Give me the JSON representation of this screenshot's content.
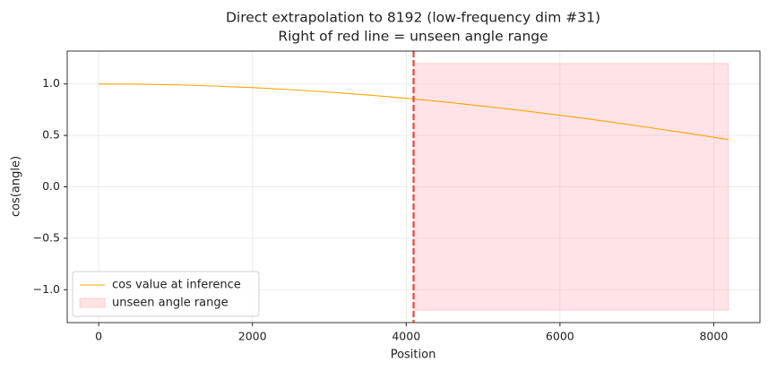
{
  "chart_data": {
    "type": "line",
    "title": "Direct extrapolation to 8192 (low-frequency dim #31)",
    "subtitle": "Right of red line = unseen angle range",
    "x_label": "Position",
    "y_label": "cos(angle)",
    "x": [
      0,
      512,
      1024,
      1536,
      2048,
      2560,
      3072,
      3584,
      4096,
      4608,
      5120,
      5632,
      6144,
      6656,
      7168,
      7680,
      8192
    ],
    "series": [
      {
        "name": "cos value at inference",
        "color": "#ffa500",
        "values": [
          1.0,
          0.998,
          0.991,
          0.979,
          0.963,
          0.942,
          0.917,
          0.888,
          0.854,
          0.817,
          0.775,
          0.73,
          0.682,
          0.631,
          0.576,
          0.519,
          0.46
        ]
      }
    ],
    "region": {
      "name": "unseen angle range",
      "color": "#ff9aa5",
      "x": [
        4096,
        8192
      ],
      "y": [
        -1.2,
        1.2
      ]
    },
    "vline": {
      "x": 4096,
      "color": "#e8453c"
    },
    "xlim": [
      -409.6,
      8601.6
    ],
    "ylim": [
      -1.32,
      1.32
    ],
    "xticks": [
      0,
      2000,
      4000,
      6000,
      8000
    ],
    "yticks": [
      {
        "value": -1.0,
        "label": "−1.0"
      },
      {
        "value": -0.5,
        "label": "−0.5"
      },
      {
        "value": 0.0,
        "label": "0.0"
      },
      {
        "value": 0.5,
        "label": "0.5"
      },
      {
        "value": 1.0,
        "label": "1.0"
      }
    ],
    "grid": true,
    "legend": "lower left"
  }
}
